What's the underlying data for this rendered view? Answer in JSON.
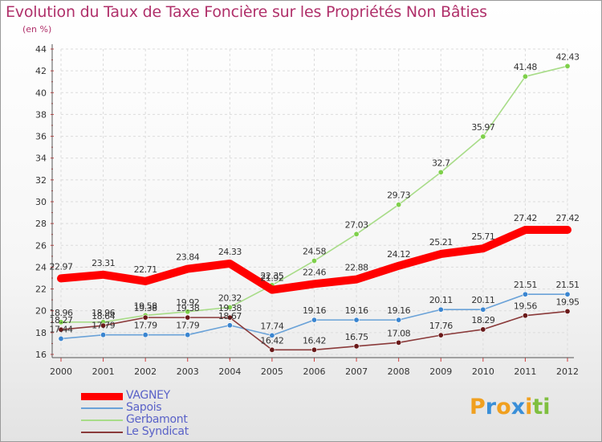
{
  "header": {
    "title": "Evolution du Taux de Taxe Foncière sur les Propriétés Non Bâties",
    "subtitle": "(en %)"
  },
  "logo": {
    "text": "Proxiti",
    "letters": [
      {
        "ch": "P",
        "color": "#f0a020"
      },
      {
        "ch": "r",
        "color": "#3a8fd8"
      },
      {
        "ch": "o",
        "color": "#f0a020"
      },
      {
        "ch": "x",
        "color": "#3a8fd8"
      },
      {
        "ch": "i",
        "color": "#f0a020"
      },
      {
        "ch": "t",
        "color": "#7fbf3f"
      },
      {
        "ch": "i",
        "color": "#7fbf3f"
      }
    ]
  },
  "chart_data": {
    "type": "line",
    "x": [
      "2000",
      "2001",
      "2002",
      "2003",
      "2004",
      "2005",
      "2006",
      "2007",
      "2008",
      "2009",
      "2010",
      "2011",
      "2012"
    ],
    "ylim": [
      16,
      44
    ],
    "yticks": [
      16,
      18,
      20,
      22,
      24,
      26,
      28,
      30,
      32,
      34,
      36,
      38,
      40,
      42,
      44
    ],
    "title": "Evolution du Taux de Taxe Foncière sur les Propriétés Non Bâties",
    "ylabel": "(en %)",
    "grid": true,
    "legend_position": "bottom-left",
    "series": [
      {
        "name": "VAGNEY",
        "color": "#ff0000",
        "thick": true,
        "marker": "none",
        "values": [
          22.97,
          23.31,
          22.71,
          23.84,
          24.33,
          21.92,
          22.46,
          22.88,
          24.12,
          25.21,
          25.71,
          27.42,
          27.42
        ],
        "labels": [
          "22.97",
          "23.31",
          "22.71",
          "23.84",
          "24.33",
          "21.92",
          "22.46",
          "22.88",
          "24.12",
          "25.21",
          "25.71",
          "27.42",
          "27.42"
        ]
      },
      {
        "name": "Sapois",
        "color": "#6aa2d8",
        "thick": false,
        "marker": "#3a85d0",
        "values": [
          17.44,
          17.79,
          17.79,
          17.79,
          18.67,
          17.74,
          19.16,
          19.16,
          19.16,
          20.11,
          20.11,
          21.51,
          21.51
        ],
        "labels": [
          "17.44",
          "17.79",
          "17.79",
          "17.79",
          "18.67",
          "17.74",
          "19.16",
          "19.16",
          "19.16",
          "20.11",
          "20.11",
          "21.51",
          "21.51"
        ]
      },
      {
        "name": "Gerbamont",
        "color": "#a8dc88",
        "thick": false,
        "marker": "#7ed04a",
        "values": [
          18.96,
          18.96,
          19.58,
          19.92,
          20.32,
          22.35,
          24.58,
          27.03,
          29.73,
          32.7,
          35.97,
          41.48,
          42.43
        ],
        "labels": [
          "18.96",
          "18.96",
          "19.58",
          "19.92",
          "20.32",
          "22.35",
          "24.58",
          "27.03",
          "29.73",
          "32.7",
          "35.97",
          "41.48",
          "42.43"
        ]
      },
      {
        "name": "Le Syndicat",
        "color": "#8a3a3a",
        "thick": false,
        "marker": "#6a1a1a",
        "values": [
          18.27,
          18.64,
          19.38,
          19.38,
          19.38,
          16.42,
          16.42,
          16.75,
          17.08,
          17.76,
          18.29,
          19.56,
          19.95
        ],
        "labels": [
          "18.27",
          "18.64",
          "19.38",
          "19.38",
          "19.38",
          "16.42",
          "16.42",
          "16.75",
          "17.08",
          "17.76",
          "18.29",
          "19.56",
          "19.95"
        ]
      }
    ]
  }
}
